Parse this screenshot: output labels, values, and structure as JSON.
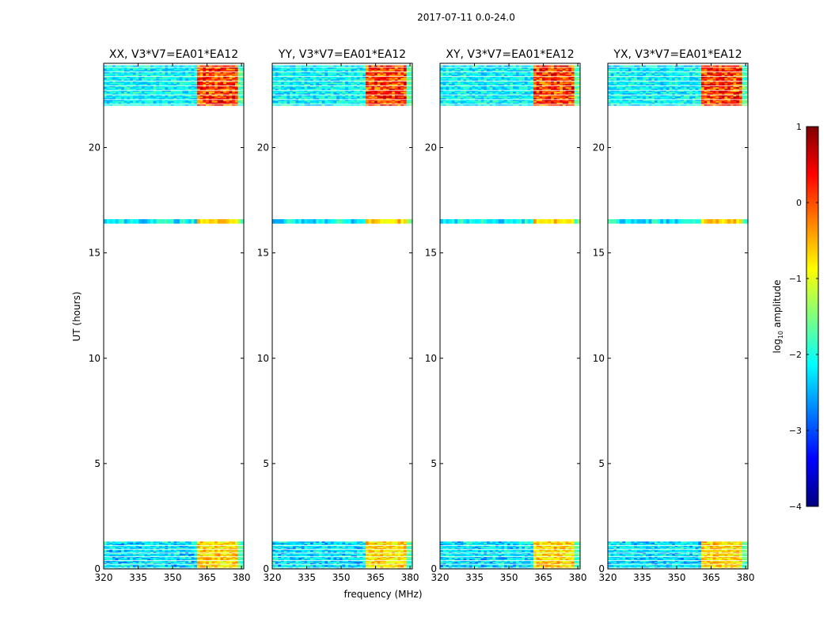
{
  "figure": {
    "title": "2017-07-11 0.0-24.0",
    "xlabel": "frequency (MHz)",
    "ylabel": "UT (hours)"
  },
  "chart_data": {
    "type": "heatmap",
    "xlim": [
      320,
      381
    ],
    "ylim": [
      0,
      24
    ],
    "x_ticks": [
      320,
      335,
      350,
      365,
      380
    ],
    "y_ticks": [
      0,
      5,
      10,
      15,
      20
    ],
    "data_time_ranges_hours": [
      [
        0.0,
        1.3
      ],
      [
        16.4,
        16.6
      ],
      [
        22.0,
        23.9
      ]
    ],
    "bright_band_start_mhz": 361,
    "bright_subbands_mhz": [
      [
        361,
        365
      ],
      [
        365,
        369.5
      ],
      [
        370,
        374.5
      ],
      [
        375,
        379
      ]
    ],
    "panels": [
      {
        "title": "XX, V3*V7=EA01*EA12",
        "bright_band_start_mhz": 361
      },
      {
        "title": "YY, V3*V7=EA01*EA12",
        "bright_band_start_mhz": 361
      },
      {
        "title": "XY, V3*V7=EA01*EA12",
        "bright_band_start_mhz": 361
      },
      {
        "title": "YX, V3*V7=EA01*EA12",
        "bright_band_start_mhz": 361
      }
    ],
    "colorbar": {
      "label_prefix": "log",
      "label_sub": "10",
      "label_suffix": " amplitude",
      "range": [
        -4,
        1
      ],
      "ticks": [
        1,
        0,
        -1,
        -2,
        -3,
        -4
      ],
      "tick_labels": [
        "1",
        "0",
        "−1",
        "−2",
        "−3",
        "−4"
      ],
      "colormap": "jet",
      "colors": [
        "#00007f",
        "#0000ff",
        "#007fff",
        "#00ffff",
        "#7fff7f",
        "#ffff00",
        "#ff7f00",
        "#ff0000",
        "#7f0000"
      ]
    }
  }
}
